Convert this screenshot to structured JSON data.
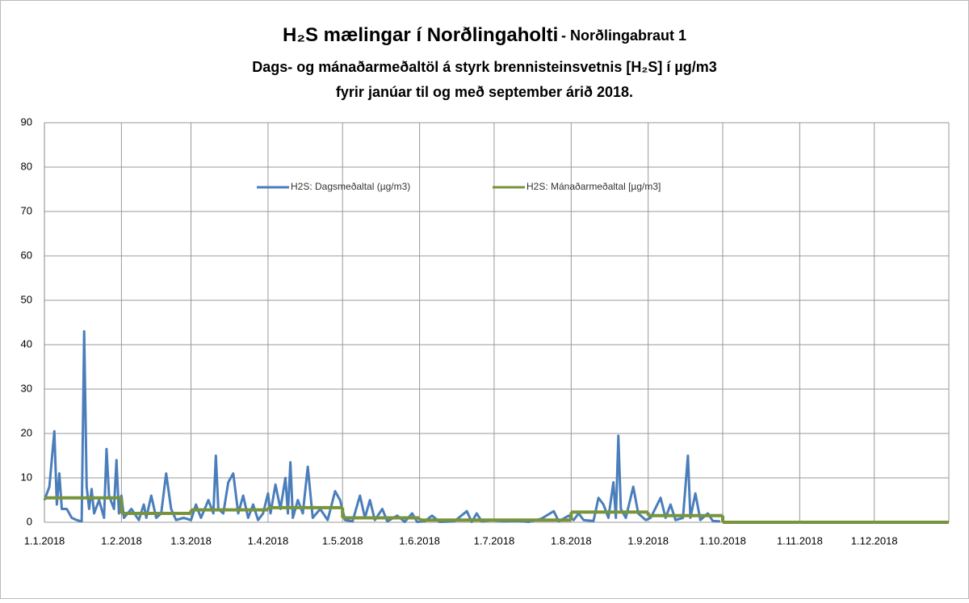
{
  "chart_data": {
    "type": "line",
    "title": "H₂S mælingar í Norðlingaholti",
    "title_suffix": "- Norðlingabraut 1",
    "subtitle": [
      "Dags- og mánaðarmeðaltöl á styrk brennisteinsvetnis [H₂S] í µg/m3",
      "fyrir janúar til og með september árið 2018."
    ],
    "xlim": [
      "1.1.2018",
      "31.12.2018"
    ],
    "xticks": [
      "1.1.2018",
      "1.2.2018",
      "1.3.2018",
      "1.4.2018",
      "1.5.2018",
      "1.6.2018",
      "1.7.2018",
      "1.8.2018",
      "1.9.2018",
      "1.10.2018",
      "1.11.2018",
      "1.12.2018"
    ],
    "ylim": [
      0,
      90
    ],
    "yticks": [
      0,
      10,
      20,
      30,
      40,
      50,
      60,
      70,
      80,
      90
    ],
    "grid": true,
    "legend": "top",
    "series": [
      {
        "name": "H2S: Dagsmeðaltal (µg/m3)",
        "color": "#4a7ebb",
        "x": [
          "1.1.2018",
          "3.1.2018",
          "5.1.2018",
          "6.1.2018",
          "7.1.2018",
          "8.1.2018",
          "10.1.2018",
          "12.1.2018",
          "14.1.2018",
          "16.1.2018",
          "17.1.2018",
          "18.1.2018",
          "19.1.2018",
          "20.1.2018",
          "21.1.2018",
          "23.1.2018",
          "25.1.2018",
          "26.1.2018",
          "27.1.2018",
          "29.1.2018",
          "30.1.2018",
          "31.1.2018",
          "1.2.2018",
          "2.2.2018",
          "5.2.2018",
          "8.2.2018",
          "10.2.2018",
          "11.2.2018",
          "13.2.2018",
          "15.2.2018",
          "17.2.2018",
          "19.2.2018",
          "21.2.2018",
          "23.2.2018",
          "26.2.2018",
          "1.3.2018",
          "3.3.2018",
          "5.3.2018",
          "8.3.2018",
          "10.3.2018",
          "11.3.2018",
          "12.3.2018",
          "14.3.2018",
          "16.3.2018",
          "18.3.2018",
          "20.3.2018",
          "22.3.2018",
          "24.3.2018",
          "26.3.2018",
          "28.3.2018",
          "30.3.2018",
          "1.4.2018",
          "2.4.2018",
          "4.4.2018",
          "6.4.2018",
          "8.4.2018",
          "9.4.2018",
          "10.4.2018",
          "11.4.2018",
          "13.4.2018",
          "15.4.2018",
          "17.4.2018",
          "19.4.2018",
          "22.4.2018",
          "25.4.2018",
          "28.4.2018",
          "30.4.2018",
          "2.5.2018",
          "5.5.2018",
          "8.5.2018",
          "10.5.2018",
          "12.5.2018",
          "14.5.2018",
          "17.5.2018",
          "19.5.2018",
          "23.5.2018",
          "26.5.2018",
          "29.5.2018",
          "31.5.2018",
          "3.6.2018",
          "6.6.2018",
          "9.6.2018",
          "15.6.2018",
          "20.6.2018",
          "22.6.2018",
          "24.6.2018",
          "26.6.2018",
          "30.6.2018",
          "5.7.2018",
          "10.7.2018",
          "15.7.2018",
          "20.7.2018",
          "25.7.2018",
          "27.7.2018",
          "31.7.2018",
          "2.8.2018",
          "4.8.2018",
          "6.8.2018",
          "10.8.2018",
          "12.8.2018",
          "14.8.2018",
          "16.8.2018",
          "18.8.2018",
          "19.8.2018",
          "20.8.2018",
          "21.8.2018",
          "23.8.2018",
          "26.8.2018",
          "28.8.2018",
          "31.8.2018",
          "2.9.2018",
          "6.9.2018",
          "8.9.2018",
          "10.9.2018",
          "12.9.2018",
          "15.9.2018",
          "17.9.2018",
          "18.9.2018",
          "20.9.2018",
          "22.9.2018",
          "25.9.2018",
          "27.9.2018",
          "30.9.2018"
        ],
        "values": [
          5,
          8,
          20.5,
          4,
          11,
          3,
          3,
          1,
          0.5,
          0.2,
          43,
          8,
          3,
          7.5,
          2,
          5,
          1,
          16.5,
          6,
          3,
          14,
          2,
          6,
          1,
          3,
          0.5,
          4,
          1,
          6,
          1,
          2,
          11,
          3,
          0.5,
          1,
          0.5,
          4,
          1,
          5,
          2,
          15,
          3,
          2,
          9,
          11,
          2,
          6,
          1,
          4,
          0.5,
          2,
          6.5,
          2,
          8.5,
          3,
          10,
          2,
          13.5,
          1,
          5,
          2,
          12.5,
          1,
          3,
          0.5,
          7,
          5,
          0.5,
          0.2,
          6,
          1,
          5,
          0.5,
          3,
          0.2,
          1.5,
          0.1,
          2,
          0.1,
          0.2,
          1.5,
          0.1,
          0.2,
          2.5,
          0.1,
          2,
          0.2,
          0.5,
          0.2,
          0.3,
          0.1,
          0.8,
          2.5,
          0.2,
          1.5,
          0.5,
          2,
          0.5,
          0.3,
          5.5,
          4,
          1,
          9,
          1,
          19.5,
          3,
          1,
          8,
          2,
          0.5,
          1,
          5.5,
          1,
          4,
          0.5,
          1,
          15,
          1,
          6.5,
          0.5,
          2,
          0.3,
          0.2
        ]
      },
      {
        "name": "H2S: Mánaðarmeðaltal [µg/m3]",
        "color": "#77933c",
        "step": true,
        "x": [
          "1.1.2018",
          "1.2.2018",
          "1.3.2018",
          "1.4.2018",
          "1.5.2018",
          "1.6.2018",
          "1.7.2018",
          "1.8.2018",
          "1.9.2018",
          "1.10.2018",
          "1.11.2018",
          "1.12.2018"
        ],
        "values": [
          5.5,
          2,
          2.8,
          3.3,
          1,
          0.5,
          0.5,
          2.3,
          1.5,
          0,
          0,
          0
        ]
      }
    ]
  }
}
